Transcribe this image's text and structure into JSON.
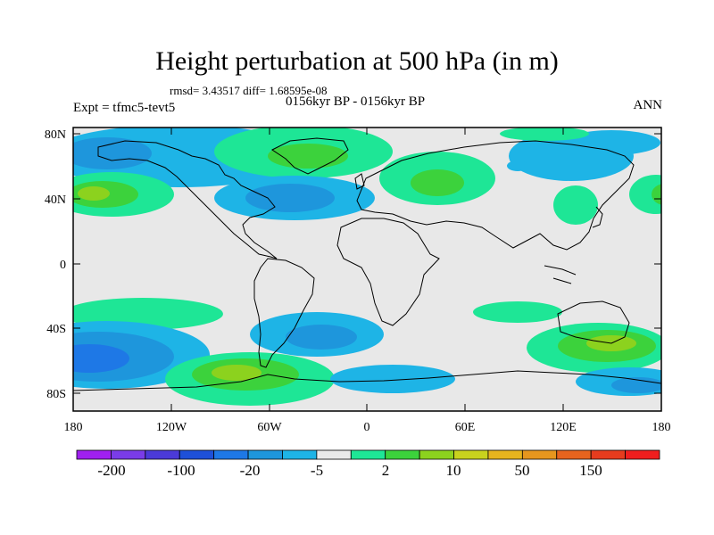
{
  "title": "Height perturbation at 500 hPa (in m)",
  "subtitle": {
    "stats": "rmsd= 3.43517 diff= 1.68595e-08",
    "period": "0156kyr BP - 0156kyr BP",
    "left": "Expt = tfmc5-tevt5",
    "right": "ANN"
  },
  "map_axes": {
    "lon_ticks": [
      "180",
      "120W",
      "60W",
      "0",
      "60E",
      "120E",
      "180"
    ],
    "lat_ticks": [
      "80N",
      "40N",
      "0",
      "40S",
      "80S"
    ]
  },
  "colorbar": {
    "colors": [
      "#a020f0",
      "#7a3ce8",
      "#4b3ad8",
      "#1e50d8",
      "#1e78e6",
      "#1e96dc",
      "#1eb4e6",
      "#eaeaea",
      "#1ee696",
      "#3cd23c",
      "#8cd21e",
      "#c8d21e",
      "#e6b41e",
      "#e6961e",
      "#e6641e",
      "#e63c1e",
      "#f01e1e"
    ],
    "labels": [
      "-200",
      "-100",
      "-20",
      "-5",
      "2",
      "10",
      "50",
      "150"
    ]
  },
  "field_colors": {
    "ocean_background": "#e8e8e8",
    "neg_weak": "#1eb4e6",
    "neg_mid": "#1e96dc",
    "neg_strong": "#1e78e6",
    "pos_weak": "#1ee696",
    "pos_mid": "#3cd23c",
    "pos_strong": "#8cd21e"
  }
}
